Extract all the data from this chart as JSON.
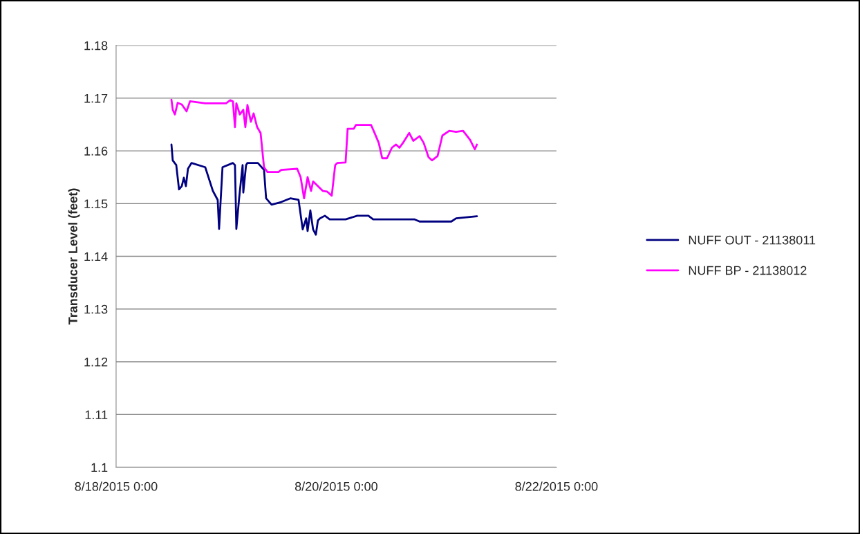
{
  "chart_data": {
    "type": "line",
    "ylabel": "Transducer Level (feet)",
    "xlim": [
      "2015-08-18T00:00",
      "2015-08-22T00:00"
    ],
    "xticks": [
      {
        "value": "2015-08-18T00:00",
        "label": "8/18/2015 0:00"
      },
      {
        "value": "2015-08-20T00:00",
        "label": "8/20/2015 0:00"
      },
      {
        "value": "2015-08-22T00:00",
        "label": "8/22/2015 0:00"
      }
    ],
    "ylim": [
      1.1,
      1.18
    ],
    "yticks": [
      1.1,
      1.11,
      1.12,
      1.13,
      1.14,
      1.15,
      1.16,
      1.17,
      1.18
    ],
    "grid": "y",
    "legend": "right",
    "marker": "none",
    "line_style": "solid",
    "series": [
      {
        "name": "NUFF OUT - 21138011",
        "color": "#000080",
        "x": [
          "2015-08-18T12:04",
          "2015-08-18T12:21",
          "2015-08-18T13:07",
          "2015-08-18T13:43",
          "2015-08-18T14:19",
          "2015-08-18T14:46",
          "2015-08-18T15:13",
          "2015-08-18T15:40",
          "2015-08-18T16:26",
          "2015-08-18T19:26",
          "2015-08-18T21:06",
          "2015-08-18T22:09",
          "2015-08-18T22:27",
          "2015-08-18T23:12",
          "2015-08-19T01:28",
          "2015-08-19T01:55",
          "2015-08-19T02:13",
          "2015-08-19T02:50",
          "2015-08-19T03:35",
          "2015-08-19T03:44",
          "2015-08-19T04:20",
          "2015-08-19T04:38",
          "2015-08-19T06:54",
          "2015-08-19T08:15",
          "2015-08-19T08:42",
          "2015-08-19T09:54",
          "2015-08-19T12:01",
          "2015-08-19T13:59",
          "2015-08-19T15:47",
          "2015-08-19T16:41",
          "2015-08-19T17:26",
          "2015-08-19T17:45",
          "2015-08-19T18:21",
          "2015-08-19T18:57",
          "2015-08-19T19:33",
          "2015-08-19T20:00",
          "2015-08-19T20:27",
          "2015-08-19T21:31",
          "2015-08-19T22:34",
          "2015-08-20T02:02",
          "2015-08-20T04:35",
          "2015-08-20T07:00",
          "2015-08-20T08:03",
          "2015-08-20T17:06",
          "2015-08-20T18:10",
          "2015-08-21T01:05",
          "2015-08-21T02:08",
          "2015-08-21T06:40"
        ],
        "values": [
          1.1612,
          1.1582,
          1.1573,
          1.1527,
          1.1533,
          1.1549,
          1.1533,
          1.1566,
          1.1577,
          1.1569,
          1.1524,
          1.1507,
          1.1452,
          1.1569,
          1.1577,
          1.1573,
          1.1452,
          1.1511,
          1.1573,
          1.1521,
          1.1573,
          1.1577,
          1.1577,
          1.1564,
          1.151,
          1.1498,
          1.1503,
          1.151,
          1.1507,
          1.1451,
          1.1472,
          1.1448,
          1.1487,
          1.1451,
          1.1441,
          1.1468,
          1.1472,
          1.1477,
          1.147,
          1.147,
          1.1477,
          1.1477,
          1.147,
          1.147,
          1.1466,
          1.1466,
          1.1472,
          1.1476
        ]
      },
      {
        "name": "NUFF BP - 21138012",
        "color": "#ff00ff",
        "x": [
          "2015-08-18T12:04",
          "2015-08-18T12:21",
          "2015-08-18T12:49",
          "2015-08-18T13:25",
          "2015-08-18T14:19",
          "2015-08-18T15:22",
          "2015-08-18T16:07",
          "2015-08-18T19:26",
          "2015-08-18T23:58",
          "2015-08-19T00:52",
          "2015-08-19T01:28",
          "2015-08-19T01:55",
          "2015-08-19T02:13",
          "2015-08-19T02:59",
          "2015-08-19T03:44",
          "2015-08-19T04:11",
          "2015-08-19T04:38",
          "2015-08-19T05:23",
          "2015-08-19T05:59",
          "2015-08-19T06:45",
          "2015-08-19T07:30",
          "2015-08-19T08:15",
          "2015-08-19T09:00",
          "2015-08-19T11:25",
          "2015-08-19T12:01",
          "2015-08-19T15:29",
          "2015-08-19T16:14",
          "2015-08-19T16:59",
          "2015-08-19T17:45",
          "2015-08-19T18:30",
          "2015-08-19T18:57",
          "2015-08-19T21:04",
          "2015-08-19T21:58",
          "2015-08-19T23:01",
          "2015-08-19T23:46",
          "2015-08-20T00:13",
          "2015-08-20T02:02",
          "2015-08-20T02:29",
          "2015-08-20T03:50",
          "2015-08-20T04:17",
          "2015-08-20T07:36",
          "2015-08-20T08:21",
          "2015-08-20T09:16",
          "2015-08-20T10:01",
          "2015-08-20T11:04",
          "2015-08-20T12:08",
          "2015-08-20T13:02",
          "2015-08-20T13:47",
          "2015-08-20T14:32",
          "2015-08-20T15:54",
          "2015-08-20T16:48",
          "2015-08-20T18:10",
          "2015-08-20T19:04",
          "2015-08-20T20:07",
          "2015-08-20T20:52",
          "2015-08-20T22:05",
          "2015-08-20T23:08",
          "2015-08-21T00:38",
          "2015-08-21T02:08",
          "2015-08-21T03:39",
          "2015-08-21T05:10",
          "2015-08-21T06:13",
          "2015-08-21T06:40"
        ],
        "values": [
          1.1697,
          1.1678,
          1.1669,
          1.1691,
          1.1688,
          1.1675,
          1.1694,
          1.169,
          1.169,
          1.1696,
          1.1694,
          1.1645,
          1.169,
          1.1669,
          1.1678,
          1.1645,
          1.1687,
          1.1655,
          1.1671,
          1.1645,
          1.1634,
          1.1569,
          1.156,
          1.156,
          1.1564,
          1.1566,
          1.155,
          1.151,
          1.155,
          1.1524,
          1.1542,
          1.1524,
          1.1523,
          1.1515,
          1.1573,
          1.1577,
          1.1578,
          1.1642,
          1.1642,
          1.1649,
          1.1649,
          1.1634,
          1.1615,
          1.1586,
          1.1586,
          1.1606,
          1.1612,
          1.1606,
          1.1615,
          1.1634,
          1.1619,
          1.1628,
          1.1615,
          1.1588,
          1.1582,
          1.159,
          1.1629,
          1.1638,
          1.1636,
          1.1638,
          1.1621,
          1.1603,
          1.1612
        ]
      }
    ]
  }
}
